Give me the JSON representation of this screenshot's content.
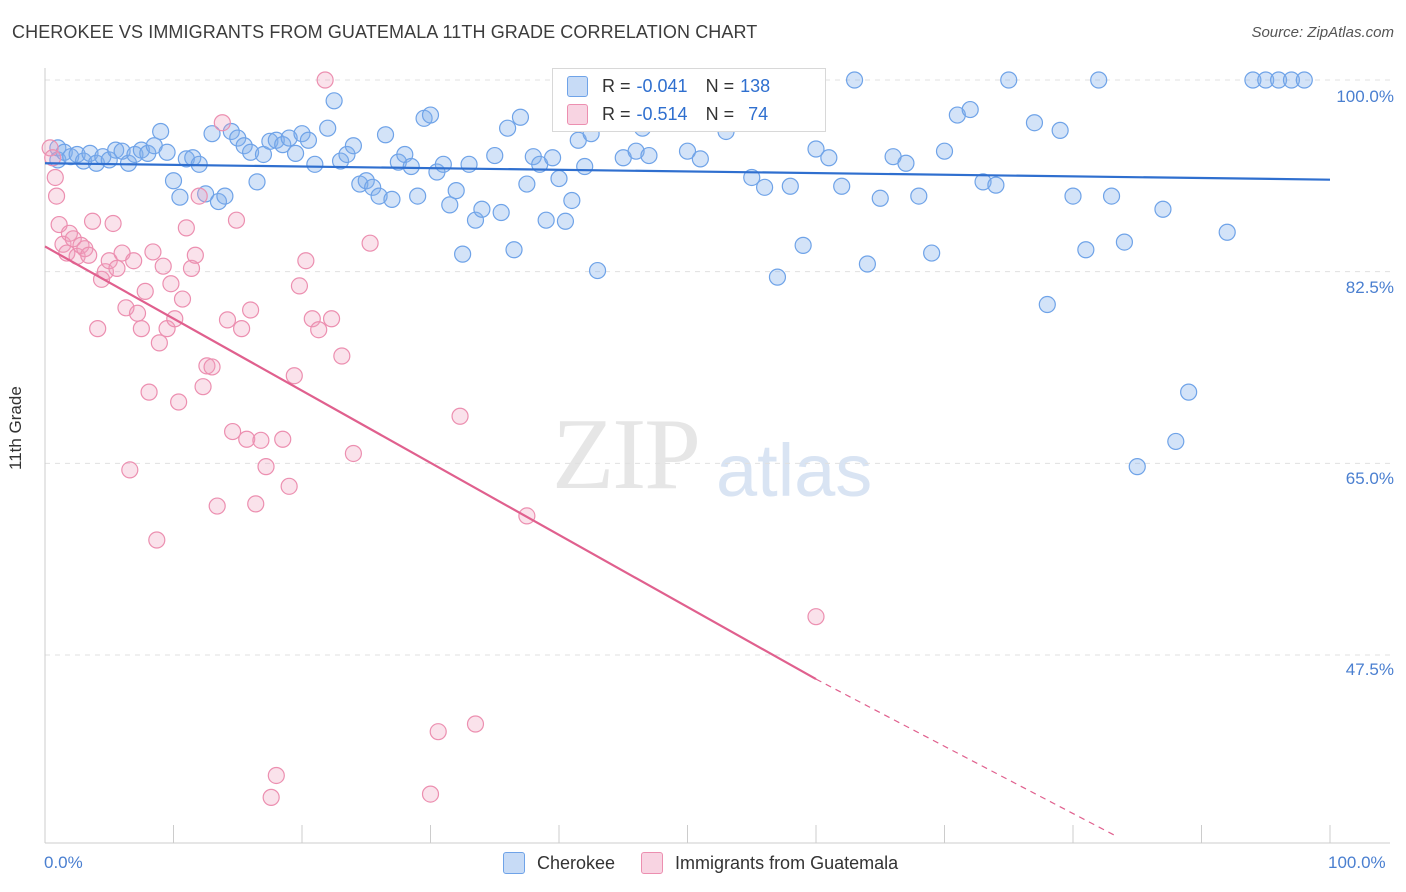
{
  "title": "CHEROKEE VS IMMIGRANTS FROM GUATEMALA 11TH GRADE CORRELATION CHART",
  "source": "Source: ZipAtlas.com",
  "watermark": {
    "zip": "ZIP",
    "atlas": "atlas"
  },
  "colors": {
    "blue": "#6fa3e8",
    "blue_fill": "rgba(130,175,235,0.35)",
    "blue_line": "#2f6fcf",
    "pink": "#ec8fb0",
    "pink_fill": "rgba(240,160,190,0.30)",
    "pink_line": "#e0608e"
  },
  "legend": {
    "r_label": "R =",
    "n_label": "N =",
    "rows": [
      {
        "r": "-0.041",
        "n": "138"
      },
      {
        "r": "-0.514",
        "n": "74"
      }
    ]
  },
  "bottom_legend": [
    "Cherokee",
    "Immigrants from Guatemala"
  ],
  "chart_data": {
    "type": "scatter",
    "title": "CHEROKEE VS IMMIGRANTS FROM GUATEMALA 11TH GRADE CORRELATION CHART",
    "xlabel": "",
    "ylabel": "11th Grade",
    "xlim": [
      0,
      100
    ],
    "ylim": [
      31,
      100
    ],
    "x_tick_labels": [
      "0.0%",
      "100.0%"
    ],
    "y_ticks": [
      47.5,
      65.0,
      82.5,
      100.0
    ],
    "y_tick_labels": [
      "47.5%",
      "65.0%",
      "82.5%",
      "100.0%"
    ],
    "grid": "horizontal dashed",
    "legend_position": "top-center",
    "series": [
      {
        "name": "Cherokee",
        "trend": {
          "x": [
            0,
            100
          ],
          "y": [
            92.4,
            90.9
          ]
        },
        "points": [
          [
            1,
            93.8
          ],
          [
            1,
            92.7
          ],
          [
            1.5,
            93.4
          ],
          [
            2,
            93
          ],
          [
            2.5,
            93.2
          ],
          [
            3,
            92.6
          ],
          [
            3.5,
            93.3
          ],
          [
            4,
            92.4
          ],
          [
            4.5,
            93.0
          ],
          [
            5,
            92.7
          ],
          [
            5.5,
            93.6
          ],
          [
            6,
            93.5
          ],
          [
            6.5,
            92.4
          ],
          [
            7,
            93.2
          ],
          [
            7.5,
            93.6
          ],
          [
            8,
            93.3
          ],
          [
            8.5,
            94.0
          ],
          [
            9,
            95.3
          ],
          [
            9.5,
            93.4
          ],
          [
            10,
            90.8
          ],
          [
            10.5,
            89.3
          ],
          [
            11,
            92.8
          ],
          [
            11.5,
            92.9
          ],
          [
            12,
            92.3
          ],
          [
            12.5,
            89.6
          ],
          [
            13,
            95.1
          ],
          [
            13.5,
            88.9
          ],
          [
            14,
            89.4
          ],
          [
            14.5,
            95.3
          ],
          [
            15,
            94.7
          ],
          [
            15.5,
            94.0
          ],
          [
            16,
            93.4
          ],
          [
            16.5,
            90.7
          ],
          [
            17,
            93.2
          ],
          [
            17.5,
            94.4
          ],
          [
            18,
            94.5
          ],
          [
            18.5,
            94.1
          ],
          [
            19,
            94.7
          ],
          [
            19.5,
            93.3
          ],
          [
            20,
            95.1
          ],
          [
            20.5,
            94.5
          ],
          [
            21,
            92.3
          ],
          [
            22,
            95.6
          ],
          [
            22.5,
            98.1
          ],
          [
            23,
            92.6
          ],
          [
            23.5,
            93.2
          ],
          [
            24,
            94.0
          ],
          [
            24.5,
            90.5
          ],
          [
            25,
            90.8
          ],
          [
            25.5,
            90.2
          ],
          [
            26,
            89.4
          ],
          [
            26.5,
            95.0
          ],
          [
            27,
            89.1
          ],
          [
            27.5,
            92.5
          ],
          [
            28,
            93.2
          ],
          [
            28.5,
            92.1
          ],
          [
            29,
            89.4
          ],
          [
            29.5,
            96.5
          ],
          [
            30,
            96.8
          ],
          [
            30.5,
            91.6
          ],
          [
            31,
            92.3
          ],
          [
            31.5,
            88.6
          ],
          [
            32,
            89.9
          ],
          [
            32.5,
            84.1
          ],
          [
            33,
            92.3
          ],
          [
            33.5,
            87.2
          ],
          [
            34,
            88.2
          ],
          [
            35,
            93.1
          ],
          [
            35.5,
            87.9
          ],
          [
            36,
            95.6
          ],
          [
            36.5,
            84.5
          ],
          [
            37,
            96.6
          ],
          [
            37.5,
            90.5
          ],
          [
            38,
            93.0
          ],
          [
            38.5,
            92.3
          ],
          [
            39,
            87.2
          ],
          [
            39.5,
            92.9
          ],
          [
            40,
            91.0
          ],
          [
            40.5,
            87.1
          ],
          [
            41,
            89.0
          ],
          [
            41.5,
            94.5
          ],
          [
            42,
            92.1
          ],
          [
            42.5,
            95.1
          ],
          [
            43,
            82.6
          ],
          [
            44,
            96.2
          ],
          [
            45,
            92.9
          ],
          [
            46,
            93.5
          ],
          [
            46.5,
            95.6
          ],
          [
            47,
            93.1
          ],
          [
            48,
            97.0
          ],
          [
            48.5,
            100
          ],
          [
            49,
            100
          ],
          [
            50,
            93.5
          ],
          [
            51,
            92.8
          ],
          [
            52,
            100
          ],
          [
            53,
            95.3
          ],
          [
            54,
            100
          ],
          [
            55,
            91.1
          ],
          [
            56,
            90.2
          ],
          [
            57,
            82.0
          ],
          [
            58,
            90.3
          ],
          [
            59,
            84.9
          ],
          [
            60,
            93.7
          ],
          [
            61,
            92.9
          ],
          [
            62,
            90.3
          ],
          [
            63,
            100
          ],
          [
            64,
            83.2
          ],
          [
            65,
            89.2
          ],
          [
            66,
            93.0
          ],
          [
            67,
            92.4
          ],
          [
            68,
            89.4
          ],
          [
            69,
            84.2
          ],
          [
            70,
            93.5
          ],
          [
            71,
            96.8
          ],
          [
            72,
            97.3
          ],
          [
            73,
            90.7
          ],
          [
            74,
            90.4
          ],
          [
            75,
            100
          ],
          [
            77,
            96.1
          ],
          [
            78,
            79.5
          ],
          [
            79,
            95.4
          ],
          [
            80,
            89.4
          ],
          [
            81,
            84.5
          ],
          [
            82,
            100
          ],
          [
            83,
            89.4
          ],
          [
            84,
            85.2
          ],
          [
            85,
            64.7
          ],
          [
            87,
            88.2
          ],
          [
            88,
            67.0
          ],
          [
            89,
            71.5
          ],
          [
            92,
            86.1
          ],
          [
            94,
            100
          ],
          [
            95,
            100
          ],
          [
            96,
            100
          ],
          [
            97,
            100
          ],
          [
            98,
            100
          ]
        ]
      },
      {
        "name": "Immigrants from Guatemala",
        "trend": {
          "x": [
            0,
            60
          ],
          "y": [
            84.8,
            45.3
          ]
        },
        "trend_dashed": {
          "x": [
            60,
            83.3
          ],
          "y": [
            45.3,
            31
          ]
        },
        "points": [
          [
            0.4,
            93.8
          ],
          [
            0.6,
            92.9
          ],
          [
            0.8,
            91.1
          ],
          [
            0.9,
            89.4
          ],
          [
            1.1,
            86.8
          ],
          [
            1.4,
            85.0
          ],
          [
            1.7,
            84.2
          ],
          [
            1.9,
            86.0
          ],
          [
            2.2,
            85.5
          ],
          [
            2.5,
            83.9
          ],
          [
            2.8,
            84.9
          ],
          [
            3.1,
            84.6
          ],
          [
            3.4,
            84.0
          ],
          [
            3.7,
            87.1
          ],
          [
            4.1,
            77.3
          ],
          [
            4.4,
            81.8
          ],
          [
            4.7,
            82.5
          ],
          [
            5.0,
            83.5
          ],
          [
            5.3,
            86.9
          ],
          [
            5.6,
            82.8
          ],
          [
            6.0,
            84.2
          ],
          [
            6.3,
            79.2
          ],
          [
            6.6,
            64.4
          ],
          [
            6.9,
            83.5
          ],
          [
            7.2,
            78.7
          ],
          [
            7.5,
            77.3
          ],
          [
            7.8,
            80.7
          ],
          [
            8.1,
            71.5
          ],
          [
            8.4,
            84.3
          ],
          [
            8.7,
            58.0
          ],
          [
            8.9,
            76.0
          ],
          [
            9.2,
            83.0
          ],
          [
            9.5,
            77.3
          ],
          [
            9.8,
            81.4
          ],
          [
            10.1,
            78.2
          ],
          [
            10.4,
            70.6
          ],
          [
            10.7,
            80.0
          ],
          [
            11.0,
            86.5
          ],
          [
            11.4,
            82.8
          ],
          [
            11.7,
            84.0
          ],
          [
            12.0,
            89.4
          ],
          [
            12.3,
            72.0
          ],
          [
            12.6,
            73.9
          ],
          [
            13.0,
            73.8
          ],
          [
            13.4,
            61.1
          ],
          [
            13.8,
            96.1
          ],
          [
            14.2,
            78.1
          ],
          [
            14.6,
            67.9
          ],
          [
            14.9,
            87.2
          ],
          [
            15.3,
            77.3
          ],
          [
            15.7,
            67.2
          ],
          [
            16.0,
            79.0
          ],
          [
            16.4,
            61.3
          ],
          [
            16.8,
            67.1
          ],
          [
            17.2,
            64.7
          ],
          [
            17.6,
            34.5
          ],
          [
            18.0,
            36.5
          ],
          [
            18.5,
            67.2
          ],
          [
            19.0,
            62.9
          ],
          [
            19.4,
            73.0
          ],
          [
            19.8,
            81.2
          ],
          [
            20.3,
            83.5
          ],
          [
            20.8,
            78.2
          ],
          [
            21.3,
            77.2
          ],
          [
            21.8,
            100
          ],
          [
            22.3,
            78.2
          ],
          [
            23.1,
            74.8
          ],
          [
            24.0,
            65.9
          ],
          [
            25.3,
            85.1
          ],
          [
            30.0,
            34.8
          ],
          [
            30.6,
            40.5
          ],
          [
            32.3,
            69.3
          ],
          [
            33.5,
            41.2
          ],
          [
            37.5,
            60.2
          ],
          [
            41.0,
            98.4
          ],
          [
            60.0,
            51.0
          ]
        ]
      }
    ]
  }
}
